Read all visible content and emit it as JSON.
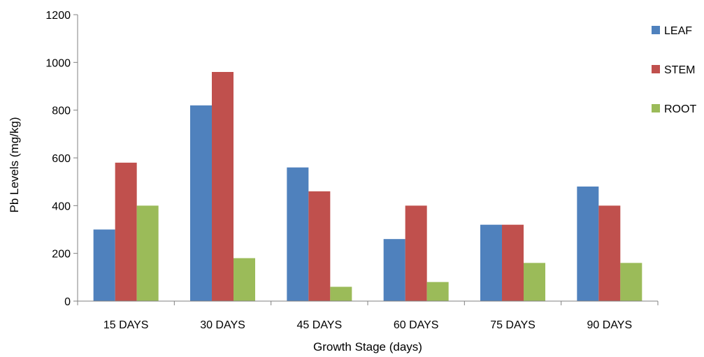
{
  "chart_data": {
    "type": "bar",
    "title": "",
    "xlabel": "Growth Stage (days)",
    "ylabel": "Pb Levels (mg/kg)",
    "categories": [
      "15 DAYS",
      "30 DAYS",
      "45 DAYS",
      "60 DAYS",
      "75 DAYS",
      "90 DAYS"
    ],
    "ylim": [
      0,
      1200
    ],
    "yticks": [
      0,
      200,
      400,
      600,
      800,
      1000,
      1200
    ],
    "grid": false,
    "legend_position": "right",
    "series": [
      {
        "name": "LEAF",
        "color": "#4F81BD",
        "values": [
          300,
          820,
          560,
          260,
          320,
          480
        ]
      },
      {
        "name": "STEM",
        "color": "#C0504D",
        "values": [
          580,
          960,
          460,
          400,
          320,
          400
        ]
      },
      {
        "name": "ROOT",
        "color": "#9BBB59",
        "values": [
          400,
          180,
          60,
          80,
          160,
          160
        ]
      }
    ]
  }
}
